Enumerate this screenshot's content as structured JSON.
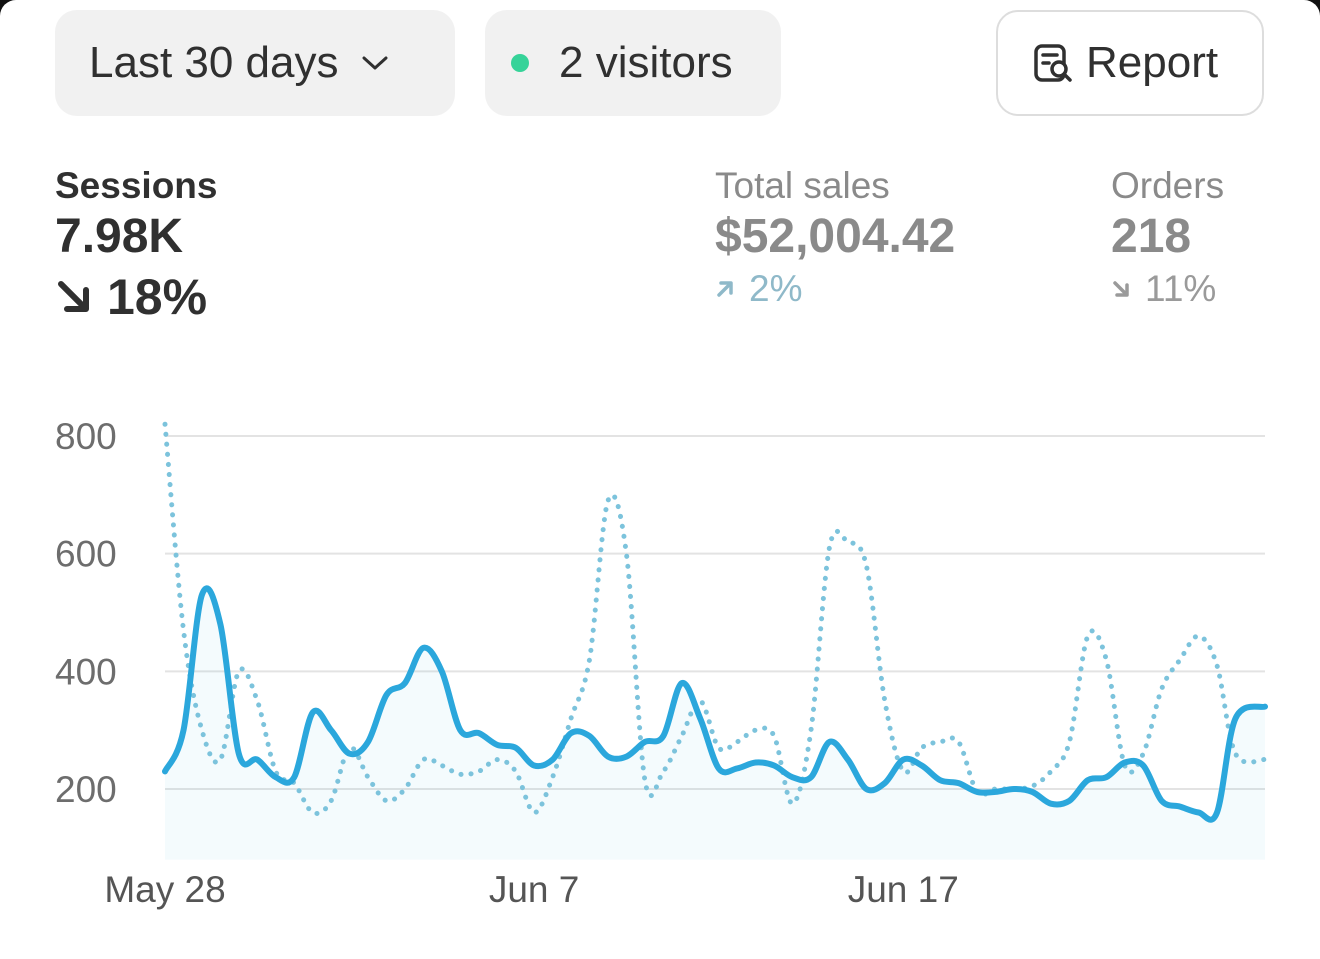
{
  "toolbar": {
    "date_range_label": "Last 30 days",
    "visitors_label": "2 visitors",
    "report_label": "Report"
  },
  "metrics": {
    "sessions": {
      "label": "Sessions",
      "value": "7.98K",
      "change": "18%",
      "direction": "down"
    },
    "total_sales": {
      "label": "Total sales",
      "value": "$52,004.42",
      "change": "2%",
      "direction": "up"
    },
    "orders": {
      "label": "Orders",
      "value": "218",
      "change": "11%",
      "direction": "down"
    }
  },
  "colors": {
    "accent": "#2ba7dc",
    "comparison": "#7cc3dc",
    "live_dot": "#36d399",
    "pill_bg": "#f1f1f1"
  },
  "icons": {
    "date_chevron": "chevron-down-icon",
    "report": "report-search-icon",
    "sessions_trend": "arrow-down-right-icon",
    "sales_trend": "arrow-up-right-icon",
    "orders_trend": "arrow-down-right-icon"
  },
  "chart_data": {
    "type": "line",
    "ylim": [
      0,
      800
    ],
    "yticks": [
      "200",
      "400",
      "600",
      "800"
    ],
    "xticks": [
      {
        "label": "May 28",
        "day": 0
      },
      {
        "label": "Jun 7",
        "day": 10
      },
      {
        "label": "Jun 17",
        "day": 20
      }
    ],
    "grid": true,
    "series": [
      {
        "style": "solid",
        "points": [
          [
            0,
            230
          ],
          [
            0.5,
            300
          ],
          [
            1,
            530
          ],
          [
            1.5,
            480
          ],
          [
            2,
            260
          ],
          [
            2.5,
            250
          ],
          [
            3,
            220
          ],
          [
            3.5,
            220
          ],
          [
            4,
            330
          ],
          [
            4.5,
            300
          ],
          [
            5,
            260
          ],
          [
            5.5,
            280
          ],
          [
            6,
            360
          ],
          [
            6.5,
            380
          ],
          [
            7,
            440
          ],
          [
            7.5,
            400
          ],
          [
            8,
            300
          ],
          [
            8.5,
            295
          ],
          [
            9,
            275
          ],
          [
            9.5,
            270
          ],
          [
            10,
            240
          ],
          [
            10.5,
            250
          ],
          [
            11,
            295
          ],
          [
            11.5,
            290
          ],
          [
            12,
            255
          ],
          [
            12.5,
            255
          ],
          [
            13,
            280
          ],
          [
            13.5,
            290
          ],
          [
            14,
            380
          ],
          [
            14.5,
            320
          ],
          [
            15,
            235
          ],
          [
            15.5,
            235
          ],
          [
            16,
            245
          ],
          [
            16.5,
            240
          ],
          [
            17,
            220
          ],
          [
            17.5,
            220
          ],
          [
            18,
            280
          ],
          [
            18.5,
            250
          ],
          [
            19,
            200
          ],
          [
            19.5,
            210
          ],
          [
            20,
            250
          ],
          [
            20.5,
            240
          ],
          [
            21,
            215
          ],
          [
            21.5,
            210
          ],
          [
            22,
            195
          ],
          [
            22.5,
            195
          ],
          [
            23,
            200
          ],
          [
            23.5,
            195
          ],
          [
            24,
            175
          ],
          [
            24.5,
            180
          ],
          [
            25,
            215
          ],
          [
            25.5,
            220
          ],
          [
            26,
            245
          ],
          [
            26.5,
            240
          ],
          [
            27,
            180
          ],
          [
            27.5,
            170
          ],
          [
            28,
            160
          ],
          [
            28.5,
            160
          ],
          [
            29,
            320
          ],
          [
            29.8,
            340
          ]
        ]
      },
      {
        "style": "dotted",
        "points": [
          [
            0,
            820
          ],
          [
            0.5,
            470
          ],
          [
            1,
            300
          ],
          [
            1.5,
            250
          ],
          [
            2,
            400
          ],
          [
            2.5,
            350
          ],
          [
            3,
            230
          ],
          [
            3.5,
            210
          ],
          [
            4,
            160
          ],
          [
            4.5,
            180
          ],
          [
            5,
            270
          ],
          [
            5.5,
            220
          ],
          [
            6,
            180
          ],
          [
            6.5,
            200
          ],
          [
            7,
            250
          ],
          [
            7.5,
            240
          ],
          [
            8,
            225
          ],
          [
            8.5,
            230
          ],
          [
            9,
            250
          ],
          [
            9.5,
            230
          ],
          [
            10,
            160
          ],
          [
            10.5,
            220
          ],
          [
            11,
            320
          ],
          [
            11.5,
            420
          ],
          [
            12,
            690
          ],
          [
            12.5,
            600
          ],
          [
            13,
            215
          ],
          [
            13.5,
            230
          ],
          [
            14,
            290
          ],
          [
            14.5,
            350
          ],
          [
            15,
            270
          ],
          [
            15.5,
            280
          ],
          [
            16,
            300
          ],
          [
            16.5,
            290
          ],
          [
            17,
            175
          ],
          [
            17.5,
            300
          ],
          [
            18,
            610
          ],
          [
            18.5,
            620
          ],
          [
            19,
            580
          ],
          [
            19.5,
            350
          ],
          [
            20,
            230
          ],
          [
            20.5,
            270
          ],
          [
            21,
            280
          ],
          [
            21.5,
            280
          ],
          [
            22,
            195
          ],
          [
            22.5,
            200
          ],
          [
            23,
            200
          ],
          [
            23.5,
            205
          ],
          [
            24,
            230
          ],
          [
            24.5,
            280
          ],
          [
            25,
            460
          ],
          [
            25.5,
            420
          ],
          [
            26,
            240
          ],
          [
            26.5,
            260
          ],
          [
            27,
            370
          ],
          [
            27.5,
            420
          ],
          [
            28,
            460
          ],
          [
            28.5,
            410
          ],
          [
            29,
            260
          ],
          [
            29.8,
            250
          ]
        ]
      }
    ]
  }
}
